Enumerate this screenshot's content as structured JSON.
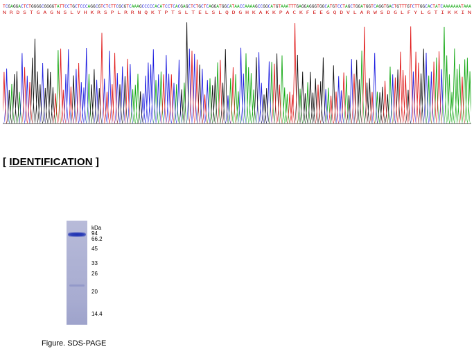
{
  "sequence": {
    "nucleotides": "TCGAGGACTCTGGGGCGGGGTATTCCTGCTCCCAGGCGTCTCTTCGCGTCAAAGCCCCCACATCCTCACGAGCTCTGCTCAGGATGGCATAACCAAAAGCCGGCATGTAAATTTGAGGAGGGTGGCATGTCCTAGCTGGATGGTCAGGTGACTGTTTGTCTTGGCACTATCAAAAAAATAAA",
    "amino_acids": "N R D S T G A G N S L V H K R S P L R R N Q K T P T S L T E L S L Q D G H K A K K P A C K F E E G Q D V L A R W S D G L F Y L G T I K K I N",
    "base_colors": {
      "A": "#12a812",
      "C": "#1d1de0",
      "G": "#111111",
      "T": "#e01919"
    }
  },
  "heading": {
    "open": "[ ",
    "title": "IDENTIFICATION",
    "close": " ]"
  },
  "gel": {
    "unit": "kDa",
    "markers": [
      "94",
      "66.2",
      "45",
      "33",
      "26",
      "20",
      "14.4"
    ],
    "lane_color": "#aeb2d4",
    "band_color": "#2436b3"
  },
  "caption": "Figure. SDS-PAGE"
}
